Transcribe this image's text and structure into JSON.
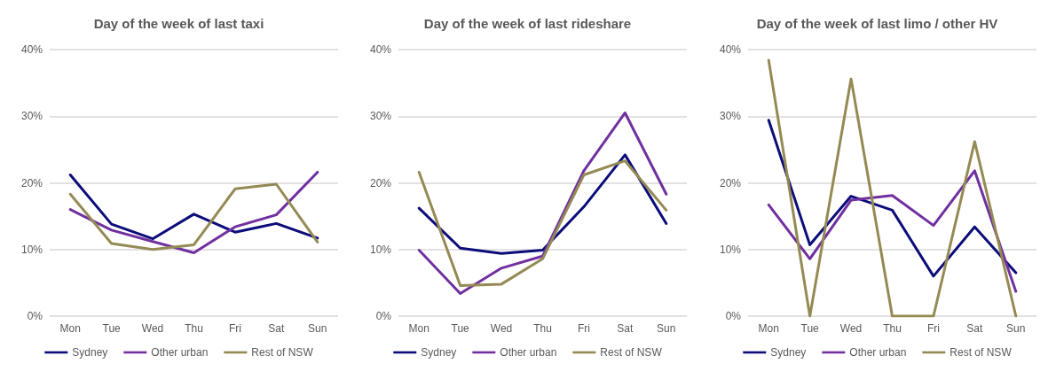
{
  "chart_data": [
    {
      "type": "line",
      "title": "Day of the week of last taxi",
      "categories": [
        "Mon",
        "Tue",
        "Wed",
        "Thu",
        "Fri",
        "Sat",
        "Sun"
      ],
      "ylim": [
        0,
        40
      ],
      "yticks": [
        {
          "value": 0,
          "label": "0%"
        },
        {
          "value": 10,
          "label": "10%"
        },
        {
          "value": 20,
          "label": "20%"
        },
        {
          "value": 30,
          "label": "30%"
        },
        {
          "value": 40,
          "label": "40%"
        }
      ],
      "grid": "y",
      "legend": "bottom",
      "marker": "none",
      "line_style": "solid",
      "series": [
        {
          "name": "Sydney",
          "color": "#0c0c7a",
          "values": [
            21.2,
            13.8,
            11.6,
            15.3,
            12.6,
            13.9,
            11.7
          ]
        },
        {
          "name": "Other urban",
          "color": "#7030a0",
          "values": [
            16.0,
            12.9,
            11.2,
            9.5,
            13.4,
            15.2,
            21.6
          ]
        },
        {
          "name": "Rest of NSW",
          "color": "#948a54",
          "values": [
            18.3,
            10.9,
            10.0,
            10.7,
            19.1,
            19.8,
            11.1
          ]
        }
      ]
    },
    {
      "type": "line",
      "title": "Day of the week of last rideshare",
      "categories": [
        "Mon",
        "Tue",
        "Wed",
        "Thu",
        "Fri",
        "Sat",
        "Sun"
      ],
      "ylim": [
        0,
        40
      ],
      "yticks": [
        {
          "value": 0,
          "label": "0%"
        },
        {
          "value": 10,
          "label": "10%"
        },
        {
          "value": 20,
          "label": "20%"
        },
        {
          "value": 30,
          "label": "30%"
        },
        {
          "value": 40,
          "label": "40%"
        }
      ],
      "grid": "y",
      "legend": "bottom",
      "marker": "none",
      "line_style": "solid",
      "series": [
        {
          "name": "Sydney",
          "color": "#0c0c7a",
          "values": [
            16.2,
            10.2,
            9.4,
            9.9,
            16.4,
            24.2,
            13.9
          ]
        },
        {
          "name": "Other urban",
          "color": "#7030a0",
          "values": [
            9.9,
            3.4,
            7.2,
            9.0,
            21.8,
            30.5,
            18.3
          ]
        },
        {
          "name": "Rest of NSW",
          "color": "#948a54",
          "values": [
            21.6,
            4.6,
            4.8,
            8.6,
            21.2,
            23.3,
            15.9
          ]
        }
      ]
    },
    {
      "type": "line",
      "title": "Day of the week of last limo / other HV",
      "categories": [
        "Mon",
        "Tue",
        "Wed",
        "Thu",
        "Fri",
        "Sat",
        "Sun"
      ],
      "ylim": [
        0,
        40
      ],
      "yticks": [
        {
          "value": 0,
          "label": "0%"
        },
        {
          "value": 10,
          "label": "10%"
        },
        {
          "value": 20,
          "label": "20%"
        },
        {
          "value": 30,
          "label": "30%"
        },
        {
          "value": 40,
          "label": "40%"
        }
      ],
      "grid": "y",
      "legend": "bottom",
      "marker": "none",
      "line_style": "solid",
      "series": [
        {
          "name": "Sydney",
          "color": "#0c0c7a",
          "values": [
            29.4,
            10.7,
            18.0,
            15.9,
            6.0,
            13.4,
            6.5
          ]
        },
        {
          "name": "Other urban",
          "color": "#7030a0",
          "values": [
            16.7,
            8.6,
            17.4,
            18.1,
            13.6,
            21.8,
            3.7
          ]
        },
        {
          "name": "Rest of NSW",
          "color": "#948a54",
          "values": [
            38.4,
            0,
            35.6,
            0,
            0,
            26.2,
            0
          ]
        }
      ]
    }
  ]
}
